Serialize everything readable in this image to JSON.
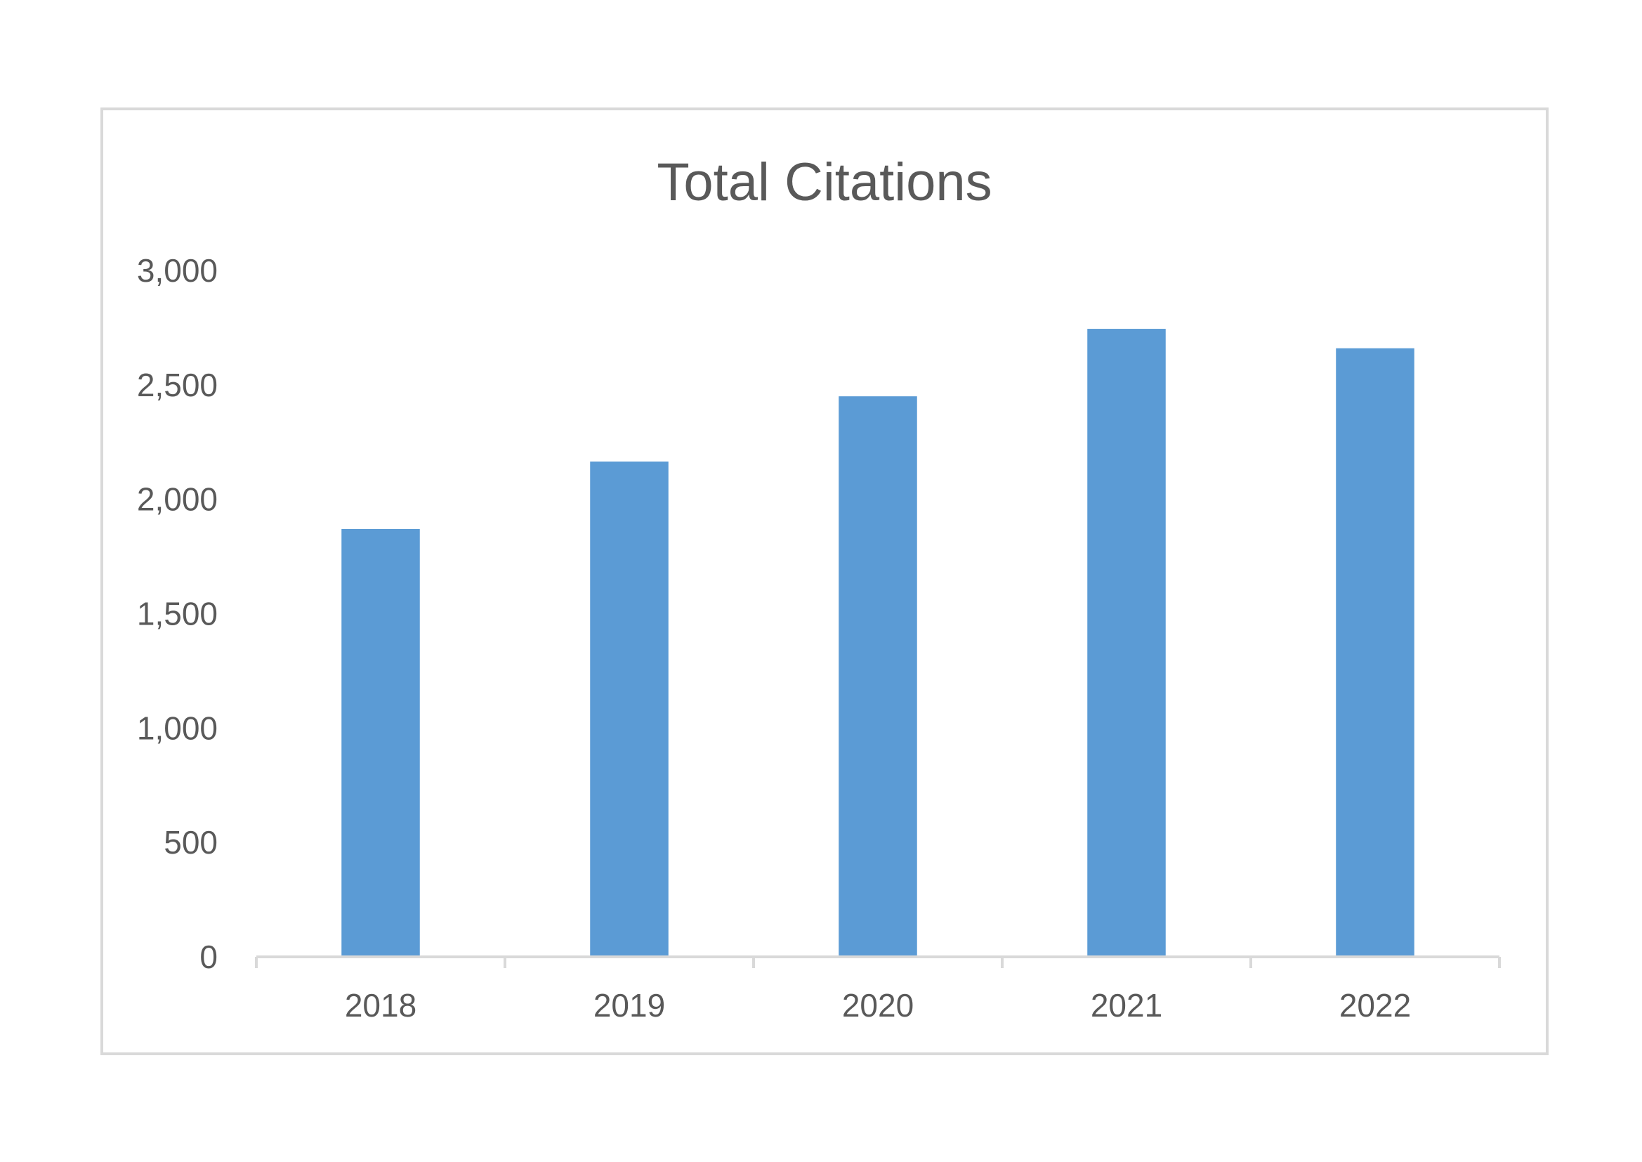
{
  "chart_data": {
    "type": "bar",
    "title": "Total Citations",
    "xlabel": "",
    "ylabel": "",
    "categories": [
      "2018",
      "2019",
      "2020",
      "2021",
      "2022"
    ],
    "values": [
      1870,
      2165,
      2450,
      2745,
      2660
    ],
    "ylim": [
      0,
      3000
    ],
    "yticks": [
      0,
      500,
      1000,
      1500,
      2000,
      2500,
      3000
    ],
    "ytick_labels": [
      "0",
      "500",
      "1,000",
      "1,500",
      "2,000",
      "2,500",
      "3,000"
    ],
    "grid": false,
    "legend": "none",
    "bar_color": "#5b9bd5"
  }
}
